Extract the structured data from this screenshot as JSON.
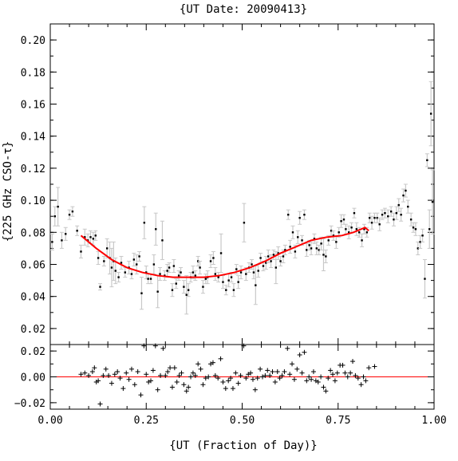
{
  "chart_data": [
    {
      "type": "scatter",
      "panel": "main",
      "title": "{UT Date: 20090413}",
      "ylabel": "{225 GHz CSO-τ}",
      "xlabel": "",
      "xlim": [
        0.0,
        1.0
      ],
      "ylim": [
        0.01,
        0.21
      ],
      "x_ticks": [
        0.0,
        0.25,
        0.5,
        0.75,
        1.0
      ],
      "y_ticks": [
        0.02,
        0.04,
        0.06,
        0.08,
        0.1,
        0.12,
        0.14,
        0.16,
        0.18,
        0.2
      ],
      "y_tick_labels": [
        "0.02",
        "0.04",
        "0.06",
        "0.08",
        "0.10",
        "0.12",
        "0.14",
        "0.16",
        "0.18",
        "0.20"
      ],
      "grid": false,
      "points": [
        [
          0.005,
          0.074,
          0.005
        ],
        [
          0.012,
          0.09,
          0.006
        ],
        [
          0.02,
          0.096,
          0.012
        ],
        [
          0.03,
          0.075,
          0.005
        ],
        [
          0.04,
          0.079,
          0.004
        ],
        [
          0.05,
          0.091,
          0.003
        ],
        [
          0.058,
          0.093,
          0.003
        ],
        [
          0.07,
          0.081,
          0.003
        ],
        [
          0.08,
          0.068,
          0.004
        ],
        [
          0.09,
          0.077,
          0.005
        ],
        [
          0.098,
          0.075,
          0.004
        ],
        [
          0.105,
          0.077,
          0.004
        ],
        [
          0.112,
          0.076,
          0.004
        ],
        [
          0.118,
          0.078,
          0.003
        ],
        [
          0.125,
          0.064,
          0.004
        ],
        [
          0.13,
          0.046,
          0.002
        ],
        [
          0.14,
          0.062,
          0.003
        ],
        [
          0.148,
          0.07,
          0.006
        ],
        [
          0.155,
          0.064,
          0.01
        ],
        [
          0.16,
          0.058,
          0.012
        ],
        [
          0.165,
          0.062,
          0.012
        ],
        [
          0.17,
          0.056,
          0.008
        ],
        [
          0.178,
          0.052,
          0.003
        ],
        [
          0.185,
          0.061,
          0.004
        ],
        [
          0.195,
          0.055,
          0.003
        ],
        [
          0.205,
          0.058,
          0.004
        ],
        [
          0.212,
          0.054,
          0.003
        ],
        [
          0.218,
          0.063,
          0.004
        ],
        [
          0.225,
          0.06,
          0.006
        ],
        [
          0.232,
          0.065,
          0.003
        ],
        [
          0.238,
          0.042,
          0.01
        ],
        [
          0.245,
          0.086,
          0.01
        ],
        [
          0.25,
          0.055,
          0.004
        ],
        [
          0.255,
          0.051,
          0.003
        ],
        [
          0.262,
          0.051,
          0.003
        ],
        [
          0.27,
          0.06,
          0.006
        ],
        [
          0.275,
          0.082,
          0.01
        ],
        [
          0.28,
          0.043,
          0.01
        ],
        [
          0.286,
          0.054,
          0.004
        ],
        [
          0.292,
          0.075,
          0.012
        ],
        [
          0.298,
          0.053,
          0.003
        ],
        [
          0.305,
          0.056,
          0.004
        ],
        [
          0.31,
          0.058,
          0.003
        ],
        [
          0.318,
          0.044,
          0.004
        ],
        [
          0.322,
          0.059,
          0.004
        ],
        [
          0.328,
          0.048,
          0.003
        ],
        [
          0.335,
          0.053,
          0.003
        ],
        [
          0.34,
          0.055,
          0.003
        ],
        [
          0.348,
          0.046,
          0.004
        ],
        [
          0.355,
          0.041,
          0.012
        ],
        [
          0.36,
          0.044,
          0.004
        ],
        [
          0.366,
          0.052,
          0.003
        ],
        [
          0.372,
          0.055,
          0.004
        ],
        [
          0.378,
          0.053,
          0.003
        ],
        [
          0.385,
          0.062,
          0.003
        ],
        [
          0.39,
          0.058,
          0.004
        ],
        [
          0.398,
          0.046,
          0.004
        ],
        [
          0.405,
          0.051,
          0.003
        ],
        [
          0.41,
          0.052,
          0.004
        ],
        [
          0.418,
          0.062,
          0.004
        ],
        [
          0.425,
          0.064,
          0.004
        ],
        [
          0.43,
          0.054,
          0.004
        ],
        [
          0.438,
          0.052,
          0.003
        ],
        [
          0.445,
          0.067,
          0.012
        ],
        [
          0.45,
          0.049,
          0.004
        ],
        [
          0.458,
          0.044,
          0.003
        ],
        [
          0.465,
          0.05,
          0.004
        ],
        [
          0.472,
          0.052,
          0.003
        ],
        [
          0.478,
          0.044,
          0.004
        ],
        [
          0.485,
          0.057,
          0.003
        ],
        [
          0.49,
          0.049,
          0.004
        ],
        [
          0.497,
          0.055,
          0.004
        ],
        [
          0.505,
          0.086,
          0.012
        ],
        [
          0.51,
          0.054,
          0.004
        ],
        [
          0.518,
          0.058,
          0.003
        ],
        [
          0.525,
          0.06,
          0.003
        ],
        [
          0.53,
          0.055,
          0.004
        ],
        [
          0.535,
          0.047,
          0.012
        ],
        [
          0.542,
          0.056,
          0.004
        ],
        [
          0.548,
          0.064,
          0.003
        ],
        [
          0.555,
          0.059,
          0.003
        ],
        [
          0.562,
          0.061,
          0.004
        ],
        [
          0.568,
          0.065,
          0.004
        ],
        [
          0.575,
          0.062,
          0.004
        ],
        [
          0.582,
          0.066,
          0.003
        ],
        [
          0.588,
          0.058,
          0.01
        ],
        [
          0.594,
          0.067,
          0.004
        ],
        [
          0.6,
          0.062,
          0.003
        ],
        [
          0.607,
          0.065,
          0.004
        ],
        [
          0.612,
          0.069,
          0.003
        ],
        [
          0.62,
          0.091,
          0.003
        ],
        [
          0.625,
          0.071,
          0.004
        ],
        [
          0.632,
          0.08,
          0.004
        ],
        [
          0.638,
          0.068,
          0.004
        ],
        [
          0.645,
          0.077,
          0.004
        ],
        [
          0.65,
          0.089,
          0.004
        ],
        [
          0.656,
          0.075,
          0.003
        ],
        [
          0.662,
          0.091,
          0.003
        ],
        [
          0.668,
          0.069,
          0.004
        ],
        [
          0.675,
          0.072,
          0.003
        ],
        [
          0.68,
          0.07,
          0.004
        ],
        [
          0.688,
          0.076,
          0.003
        ],
        [
          0.694,
          0.07,
          0.004
        ],
        [
          0.7,
          0.069,
          0.003
        ],
        [
          0.706,
          0.073,
          0.004
        ],
        [
          0.712,
          0.066,
          0.01
        ],
        [
          0.718,
          0.065,
          0.004
        ],
        [
          0.725,
          0.075,
          0.003
        ],
        [
          0.732,
          0.081,
          0.003
        ],
        [
          0.738,
          0.078,
          0.003
        ],
        [
          0.745,
          0.074,
          0.004
        ],
        [
          0.752,
          0.08,
          0.003
        ],
        [
          0.758,
          0.087,
          0.004
        ],
        [
          0.765,
          0.088,
          0.003
        ],
        [
          0.77,
          0.082,
          0.003
        ],
        [
          0.778,
          0.08,
          0.004
        ],
        [
          0.785,
          0.083,
          0.003
        ],
        [
          0.792,
          0.092,
          0.003
        ],
        [
          0.798,
          0.082,
          0.004
        ],
        [
          0.805,
          0.08,
          0.003
        ],
        [
          0.812,
          0.075,
          0.004
        ],
        [
          0.818,
          0.082,
          0.003
        ],
        [
          0.825,
          0.08,
          0.003
        ],
        [
          0.832,
          0.089,
          0.003
        ],
        [
          0.838,
          0.086,
          0.004
        ],
        [
          0.845,
          0.089,
          0.003
        ],
        [
          0.852,
          0.089,
          0.003
        ],
        [
          0.858,
          0.085,
          0.004
        ],
        [
          0.865,
          0.091,
          0.003
        ],
        [
          0.872,
          0.092,
          0.003
        ],
        [
          0.88,
          0.09,
          0.004
        ],
        [
          0.888,
          0.093,
          0.003
        ],
        [
          0.895,
          0.088,
          0.004
        ],
        [
          0.902,
          0.092,
          0.004
        ],
        [
          0.908,
          0.097,
          0.004
        ],
        [
          0.914,
          0.091,
          0.004
        ],
        [
          0.92,
          0.103,
          0.004
        ],
        [
          0.926,
          0.106,
          0.004
        ],
        [
          0.932,
          0.096,
          0.004
        ],
        [
          0.94,
          0.088,
          0.004
        ],
        [
          0.946,
          0.083,
          0.003
        ],
        [
          0.952,
          0.082,
          0.004
        ],
        [
          0.958,
          0.07,
          0.004
        ],
        [
          0.964,
          0.074,
          0.004
        ],
        [
          0.97,
          0.078,
          0.004
        ],
        [
          0.976,
          0.051,
          0.012
        ],
        [
          0.982,
          0.125,
          0.004
        ],
        [
          0.988,
          0.082,
          0.012
        ],
        [
          0.992,
          0.154,
          0.02
        ],
        [
          0.996,
          0.099,
          0.02
        ]
      ],
      "fit": [
        [
          0.08,
          0.078
        ],
        [
          0.12,
          0.07
        ],
        [
          0.16,
          0.063
        ],
        [
          0.2,
          0.058
        ],
        [
          0.24,
          0.055
        ],
        [
          0.28,
          0.053
        ],
        [
          0.32,
          0.052
        ],
        [
          0.36,
          0.052
        ],
        [
          0.4,
          0.052
        ],
        [
          0.44,
          0.053
        ],
        [
          0.48,
          0.055
        ],
        [
          0.52,
          0.058
        ],
        [
          0.56,
          0.062
        ],
        [
          0.6,
          0.067
        ],
        [
          0.64,
          0.071
        ],
        [
          0.68,
          0.075
        ],
        [
          0.72,
          0.077
        ],
        [
          0.76,
          0.078
        ],
        [
          0.79,
          0.08
        ],
        [
          0.81,
          0.082
        ],
        [
          0.82,
          0.083
        ],
        [
          0.83,
          0.081
        ]
      ],
      "colors": {
        "points": "#000000",
        "errorbars": "#c8c8c8",
        "fit": "#ff0000",
        "axes": "#000000"
      }
    },
    {
      "type": "scatter",
      "panel": "residual",
      "title": "",
      "ylabel": "",
      "xlabel": "{UT (Fraction of Day)}",
      "xlim": [
        0.0,
        1.0
      ],
      "ylim": [
        -0.025,
        0.025
      ],
      "x_ticks": [
        0.0,
        0.25,
        0.5,
        0.75,
        1.0
      ],
      "x_tick_labels": [
        "0.00",
        "0.25",
        "0.50",
        "0.75",
        "1.00"
      ],
      "y_ticks": [
        -0.02,
        0.0,
        0.02
      ],
      "y_tick_labels": [
        "−0.02",
        "0.00",
        "0.02"
      ],
      "zero_line": 0.0,
      "points": [
        [
          0.08,
          0.002
        ],
        [
          0.09,
          0.003
        ],
        [
          0.1,
          0.001
        ],
        [
          0.11,
          0.004
        ],
        [
          0.115,
          0.007
        ],
        [
          0.12,
          -0.004
        ],
        [
          0.125,
          -0.003
        ],
        [
          0.13,
          -0.021
        ],
        [
          0.138,
          0.001
        ],
        [
          0.145,
          0.006
        ],
        [
          0.152,
          0.001
        ],
        [
          0.16,
          -0.005
        ],
        [
          0.168,
          0.002
        ],
        [
          0.175,
          0.004
        ],
        [
          0.182,
          -0.001
        ],
        [
          0.19,
          -0.009
        ],
        [
          0.198,
          0.003
        ],
        [
          0.205,
          -0.002
        ],
        [
          0.212,
          0.006
        ],
        [
          0.22,
          -0.006
        ],
        [
          0.228,
          0.004
        ],
        [
          0.236,
          -0.014
        ],
        [
          0.244,
          0.031
        ],
        [
          0.25,
          0.002
        ],
        [
          0.256,
          -0.004
        ],
        [
          0.262,
          -0.003
        ],
        [
          0.268,
          0.005
        ],
        [
          0.274,
          0.026
        ],
        [
          0.28,
          -0.01
        ],
        [
          0.287,
          0.001
        ],
        [
          0.294,
          0.022
        ],
        [
          0.3,
          0.001
        ],
        [
          0.306,
          0.004
        ],
        [
          0.312,
          0.007
        ],
        [
          0.318,
          -0.008
        ],
        [
          0.324,
          0.007
        ],
        [
          0.33,
          -0.004
        ],
        [
          0.336,
          0.001
        ],
        [
          0.342,
          0.003
        ],
        [
          0.348,
          -0.006
        ],
        [
          0.355,
          -0.011
        ],
        [
          0.36,
          -0.008
        ],
        [
          0.366,
          0.0
        ],
        [
          0.372,
          0.003
        ],
        [
          0.378,
          0.001
        ],
        [
          0.385,
          0.01
        ],
        [
          0.392,
          0.006
        ],
        [
          0.398,
          -0.006
        ],
        [
          0.405,
          -0.001
        ],
        [
          0.412,
          0.0
        ],
        [
          0.418,
          0.01
        ],
        [
          0.424,
          0.011
        ],
        [
          0.43,
          0.001
        ],
        [
          0.437,
          -0.001
        ],
        [
          0.444,
          0.014
        ],
        [
          0.45,
          -0.004
        ],
        [
          0.457,
          -0.009
        ],
        [
          0.464,
          -0.003
        ],
        [
          0.47,
          -0.001
        ],
        [
          0.476,
          -0.009
        ],
        [
          0.483,
          0.003
        ],
        [
          0.49,
          -0.005
        ],
        [
          0.496,
          0.001
        ],
        [
          0.504,
          0.031
        ],
        [
          0.51,
          -0.001
        ],
        [
          0.516,
          0.002
        ],
        [
          0.522,
          0.003
        ],
        [
          0.528,
          -0.002
        ],
        [
          0.534,
          -0.01
        ],
        [
          0.54,
          -0.001
        ],
        [
          0.547,
          0.006
        ],
        [
          0.553,
          0.0
        ],
        [
          0.56,
          0.001
        ],
        [
          0.566,
          0.005
        ],
        [
          0.572,
          0.001
        ],
        [
          0.579,
          0.004
        ],
        [
          0.586,
          -0.004
        ],
        [
          0.592,
          0.004
        ],
        [
          0.598,
          -0.001
        ],
        [
          0.604,
          0.001
        ],
        [
          0.61,
          0.004
        ],
        [
          0.618,
          0.022
        ],
        [
          0.624,
          0.002
        ],
        [
          0.63,
          0.01
        ],
        [
          0.636,
          -0.002
        ],
        [
          0.643,
          0.006
        ],
        [
          0.65,
          0.017
        ],
        [
          0.656,
          0.003
        ],
        [
          0.662,
          0.019
        ],
        [
          0.668,
          -0.003
        ],
        [
          0.674,
          0.0
        ],
        [
          0.68,
          -0.002
        ],
        [
          0.686,
          0.004
        ],
        [
          0.692,
          -0.003
        ],
        [
          0.698,
          -0.004
        ],
        [
          0.705,
          0.0
        ],
        [
          0.712,
          -0.008
        ],
        [
          0.718,
          -0.011
        ],
        [
          0.724,
          -0.001
        ],
        [
          0.73,
          0.005
        ],
        [
          0.736,
          0.002
        ],
        [
          0.742,
          -0.003
        ],
        [
          0.748,
          0.003
        ],
        [
          0.755,
          0.009
        ],
        [
          0.762,
          0.009
        ],
        [
          0.768,
          0.003
        ],
        [
          0.775,
          0.0
        ],
        [
          0.782,
          0.003
        ],
        [
          0.788,
          0.012
        ],
        [
          0.795,
          0.001
        ],
        [
          0.802,
          -0.001
        ],
        [
          0.81,
          -0.006
        ],
        [
          0.816,
          0.0
        ],
        [
          0.822,
          -0.003
        ],
        [
          0.83,
          0.007
        ],
        [
          0.845,
          0.008
        ]
      ],
      "colors": {
        "points": "#000000",
        "zero_line": "#ff0000",
        "axes": "#000000"
      }
    }
  ]
}
